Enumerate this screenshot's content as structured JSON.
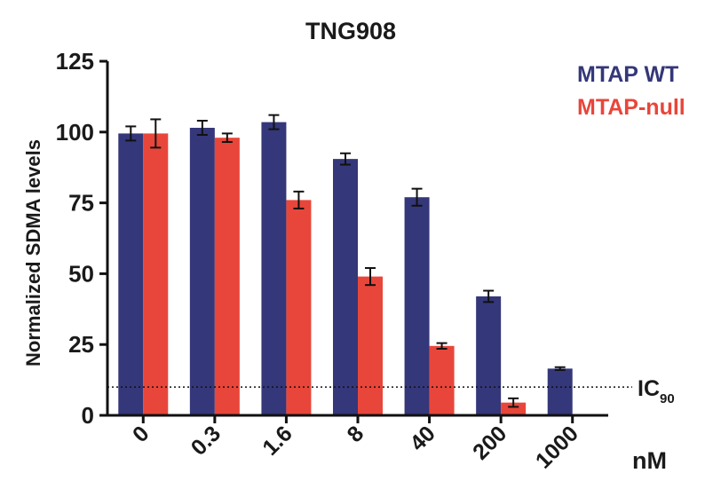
{
  "chart_data": {
    "type": "bar",
    "title": "TNG908",
    "ylabel": "Normalized SDMA levels",
    "x_unit": "nM",
    "categories": [
      "0",
      "0.3",
      "1.6",
      "8",
      "40",
      "200",
      "1000"
    ],
    "ylim": [
      0,
      125
    ],
    "yticks": [
      "0",
      "25",
      "50",
      "75",
      "100",
      "125"
    ],
    "series": [
      {
        "name": "MTAP WT",
        "color": "#343779",
        "values": [
          99.5,
          101.5,
          103.5,
          90.5,
          77,
          42,
          16.5
        ],
        "errors": [
          2.5,
          2.5,
          2.5,
          2,
          3,
          2,
          0.5
        ]
      },
      {
        "name": "MTAP-null",
        "color": "#e8463a",
        "values": [
          99.5,
          98,
          76,
          49,
          24.5,
          4.5,
          null
        ],
        "errors": [
          5,
          1.5,
          3,
          3,
          1,
          1.5,
          null
        ]
      }
    ],
    "reference_line": {
      "label": "IC",
      "subscript": "90",
      "value": 10
    },
    "legend_position": "top-right",
    "grid": false
  }
}
